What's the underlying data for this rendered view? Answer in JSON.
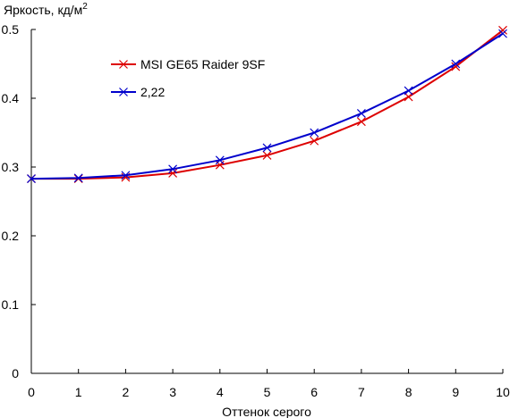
{
  "chart_data": {
    "type": "line",
    "ylabel_main": "Яркость, кд/м",
    "ylabel_sup": "2",
    "xlabel": "Оттенок серого",
    "xlim": [
      0,
      10
    ],
    "ylim": [
      0,
      0.5
    ],
    "x": [
      0,
      1,
      2,
      3,
      4,
      5,
      6,
      7,
      8,
      9,
      10
    ],
    "x_tick_labels": [
      "0",
      "1",
      "2",
      "3",
      "4",
      "5",
      "6",
      "7",
      "8",
      "9",
      "10"
    ],
    "y_ticks": [
      0,
      0.1,
      0.2,
      0.3,
      0.4,
      0.5
    ],
    "y_tick_labels": [
      "0",
      "0.1",
      "0.2",
      "0.3",
      "0.4",
      "0.5"
    ],
    "grid": false,
    "legend_position": "upper-left, inside plot area",
    "series": [
      {
        "name": "MSI GE65 Raider 9SF",
        "color": "#dd0000",
        "marker": "x",
        "values": [
          0.283,
          0.283,
          0.285,
          0.291,
          0.303,
          0.317,
          0.338,
          0.366,
          0.402,
          0.446,
          0.499
        ]
      },
      {
        "name": "2,22",
        "color": "#0000cc",
        "marker": "x",
        "values": [
          0.283,
          0.284,
          0.288,
          0.297,
          0.31,
          0.328,
          0.35,
          0.378,
          0.411,
          0.45,
          0.494
        ]
      }
    ]
  }
}
